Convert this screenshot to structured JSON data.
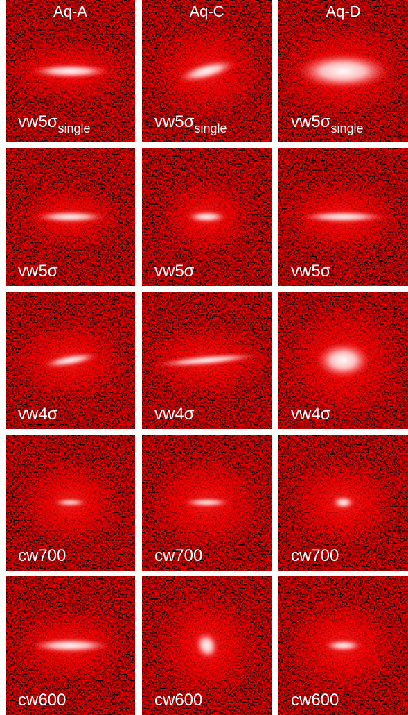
{
  "columns": [
    "Aq-A",
    "Aq-C",
    "Aq-D"
  ],
  "rows": [
    {
      "label": "vw5σ",
      "sub": "single"
    },
    {
      "label": "vw5σ"
    },
    {
      "label": "vw4σ"
    },
    {
      "label": "cw700"
    },
    {
      "label": "cw600"
    }
  ]
}
